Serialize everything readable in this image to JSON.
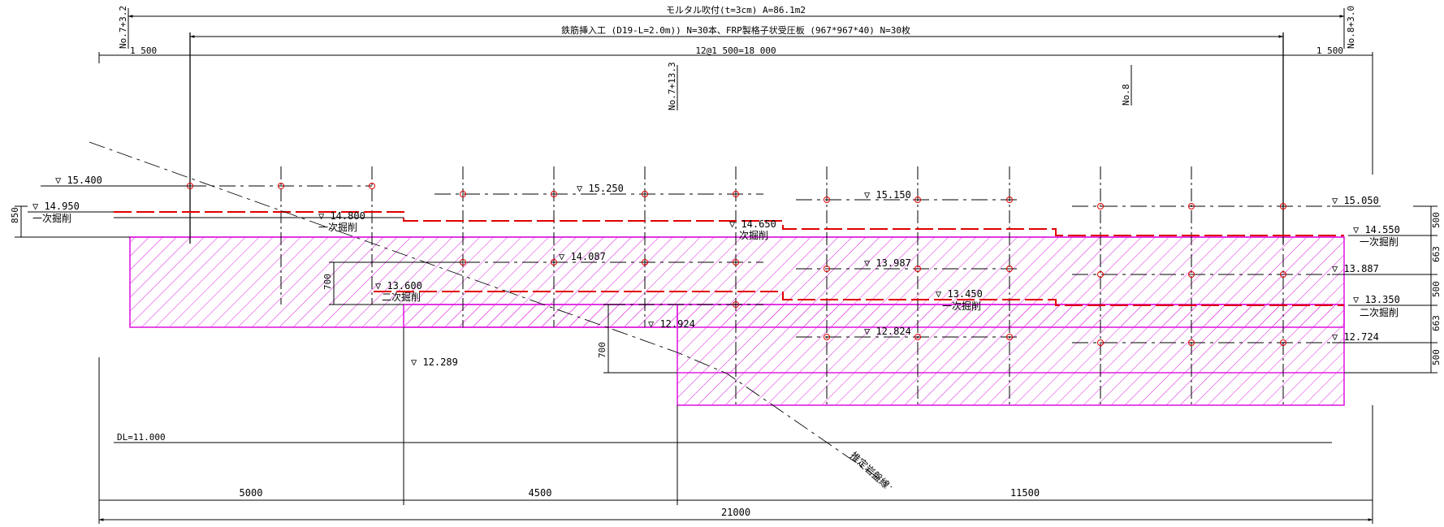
{
  "top_notes": {
    "mortar": "モルタル吹付(t=3cm)  A=86.1m2",
    "rebar": "鉄筋挿入工 (D19-L=2.0m)) N=30本、FRP製格子状受圧板 (967*967*40)  N=30枚",
    "spacing_left": "1 500",
    "spacing_mid": "12@1 500=18 000",
    "spacing_right": "1 500"
  },
  "stations": {
    "left": "No.7+3.2",
    "mid": "No.7+13.3",
    "no8": "No.8",
    "right": "No.8+3.0"
  },
  "elevations": {
    "e15400": "▽ 15.400",
    "e15250": "▽ 15.250",
    "e15150": "▽ 15.150",
    "e15050": "▽ 15.050",
    "e14950": "▽ 14.950",
    "e14800": "▽ 14.800",
    "e14650": "▽ 14.650",
    "e14550": "▽ 14.550",
    "e14087": "▽ 14.087",
    "e13987": "▽ 13.987",
    "e13887": "▽ 13.887",
    "e13600": "▽ 13.600",
    "e13450": "▽ 13.450",
    "e13350": "▽ 13.350",
    "e12924": "▽ 12.924",
    "e12824": "▽ 12.824",
    "e12724": "▽ 12.724",
    "e12289": "▽ 12.289"
  },
  "excavation": {
    "first": "一次掘削",
    "first_short": "次掘削",
    "second": "二次掘削"
  },
  "left_dims": {
    "d850": "850",
    "d700a": "700",
    "d700b": "700"
  },
  "right_dims": {
    "r500a": "500",
    "r663a": "663",
    "r500b": "500",
    "r663b": "663",
    "r500c": "500"
  },
  "datum": "DL=11.000",
  "rock_line": "推定岩盤線",
  "bottom_dims": {
    "d5000": "5000",
    "d4500": "4500",
    "d11500": "11500",
    "d21000": "21000"
  },
  "colors": {
    "excavation_line": "#e00000",
    "shotcrete_area": "#e020e0"
  }
}
